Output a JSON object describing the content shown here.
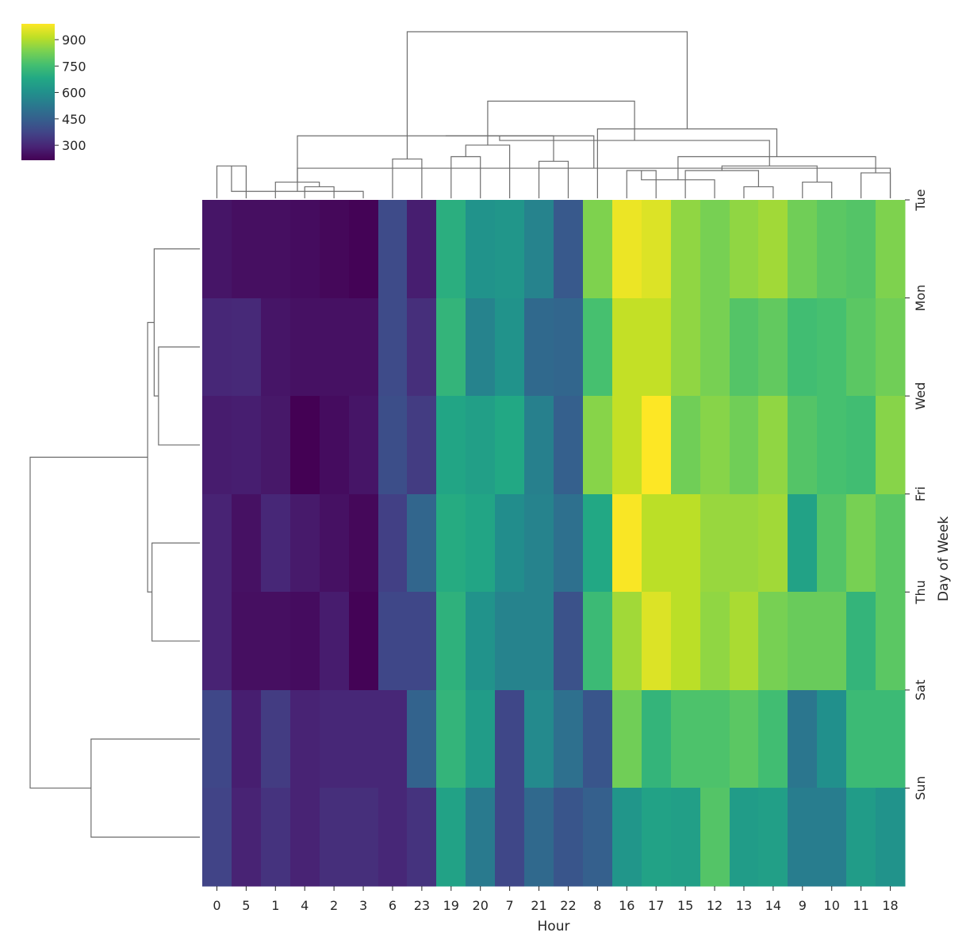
{
  "chart_data": {
    "type": "heatmap",
    "title": "",
    "xlabel": "Hour",
    "ylabel": "Day of Week",
    "columns": [
      "0",
      "5",
      "1",
      "4",
      "2",
      "3",
      "6",
      "23",
      "19",
      "20",
      "7",
      "21",
      "22",
      "8",
      "16",
      "17",
      "15",
      "12",
      "13",
      "14",
      "9",
      "10",
      "11",
      "18"
    ],
    "rows": [
      "Tue",
      "Mon",
      "Wed",
      "Fri",
      "Thu",
      "Sat",
      "Sun"
    ],
    "values": [
      [
        260,
        245,
        245,
        240,
        230,
        220,
        390,
        280,
        700,
        610,
        620,
        560,
        430,
        840,
        970,
        950,
        860,
        830,
        860,
        880,
        820,
        790,
        780,
        840
      ],
      [
        300,
        305,
        260,
        250,
        250,
        250,
        390,
        320,
        720,
        560,
        610,
        480,
        470,
        760,
        920,
        920,
        860,
        830,
        780,
        800,
        750,
        760,
        790,
        820
      ],
      [
        275,
        280,
        265,
        215,
        240,
        260,
        400,
        350,
        670,
        650,
        680,
        550,
        450,
        850,
        920,
        990,
        820,
        850,
        820,
        860,
        780,
        760,
        750,
        850
      ],
      [
        290,
        250,
        300,
        270,
        250,
        230,
        360,
        470,
        690,
        670,
        590,
        560,
        500,
        680,
        985,
        910,
        910,
        870,
        870,
        880,
        660,
        780,
        830,
        790
      ],
      [
        290,
        245,
        245,
        240,
        275,
        220,
        380,
        380,
        710,
        610,
        560,
        560,
        410,
        740,
        880,
        950,
        910,
        860,
        890,
        830,
        810,
        810,
        720,
        790
      ],
      [
        380,
        280,
        350,
        290,
        300,
        300,
        300,
        460,
        720,
        640,
        380,
        580,
        500,
        420,
        820,
        720,
        770,
        770,
        790,
        750,
        520,
        600,
        740,
        740
      ],
      [
        370,
        290,
        330,
        290,
        320,
        320,
        300,
        330,
        660,
        530,
        380,
        480,
        420,
        450,
        620,
        660,
        650,
        780,
        640,
        650,
        540,
        540,
        640,
        610
      ]
    ],
    "colormap": "viridis",
    "colorbar": {
      "ticks": [
        300,
        450,
        600,
        750,
        900
      ],
      "range": [
        215,
        990
      ]
    },
    "col_dendrogram": [
      {
        "a": 0,
        "b": 1,
        "height": 0.14
      },
      {
        "a": 3,
        "b": 4,
        "height": 0.05
      },
      {
        "a": 24,
        "b": 5,
        "height": 0.03
      },
      {
        "a": 2,
        "b": 25,
        "height": 0.07
      },
      {
        "a": 26,
        "b": 23,
        "height": 0.13
      },
      {
        "a": 6,
        "b": 7,
        "height": 0.17
      },
      {
        "a": 27,
        "b": 28,
        "height": 0.27
      },
      {
        "a": 8,
        "b": 9,
        "height": 0.18
      },
      {
        "a": 11,
        "b": 12,
        "height": 0.16
      },
      {
        "a": 10,
        "b": 31,
        "height": 0.23
      },
      {
        "a": 30,
        "b": 32,
        "height": 0.27
      },
      {
        "a": 14,
        "b": 15,
        "height": 0.12
      },
      {
        "a": 18,
        "b": 19,
        "height": 0.05
      },
      {
        "a": 17,
        "b": 35,
        "height": 0.08
      },
      {
        "a": 16,
        "b": 36,
        "height": 0.12
      },
      {
        "a": 20,
        "b": 21,
        "height": 0.07
      },
      {
        "a": 22,
        "b": 23,
        "height": 0.11
      },
      {
        "a": 38,
        "b": 39,
        "height": 0.14
      },
      {
        "a": 37,
        "b": 40,
        "height": 0.18
      },
      {
        "a": 34,
        "b": 41,
        "height": 0.25
      },
      {
        "a": 13,
        "b": 42,
        "height": 0.3
      },
      {
        "a": 33,
        "b": 43,
        "height": 0.42
      },
      {
        "a": 29,
        "b": 44,
        "height": 0.72
      }
    ],
    "row_dendrogram": [
      {
        "a": 1,
        "b": 2,
        "height": 0.19
      },
      {
        "a": 0,
        "b": 7,
        "height": 0.21
      },
      {
        "a": 3,
        "b": 4,
        "height": 0.22
      },
      {
        "a": 8,
        "b": 9,
        "height": 0.24
      },
      {
        "a": 5,
        "b": 6,
        "height": 0.5
      },
      {
        "a": 10,
        "b": 11,
        "height": 0.78
      }
    ]
  }
}
